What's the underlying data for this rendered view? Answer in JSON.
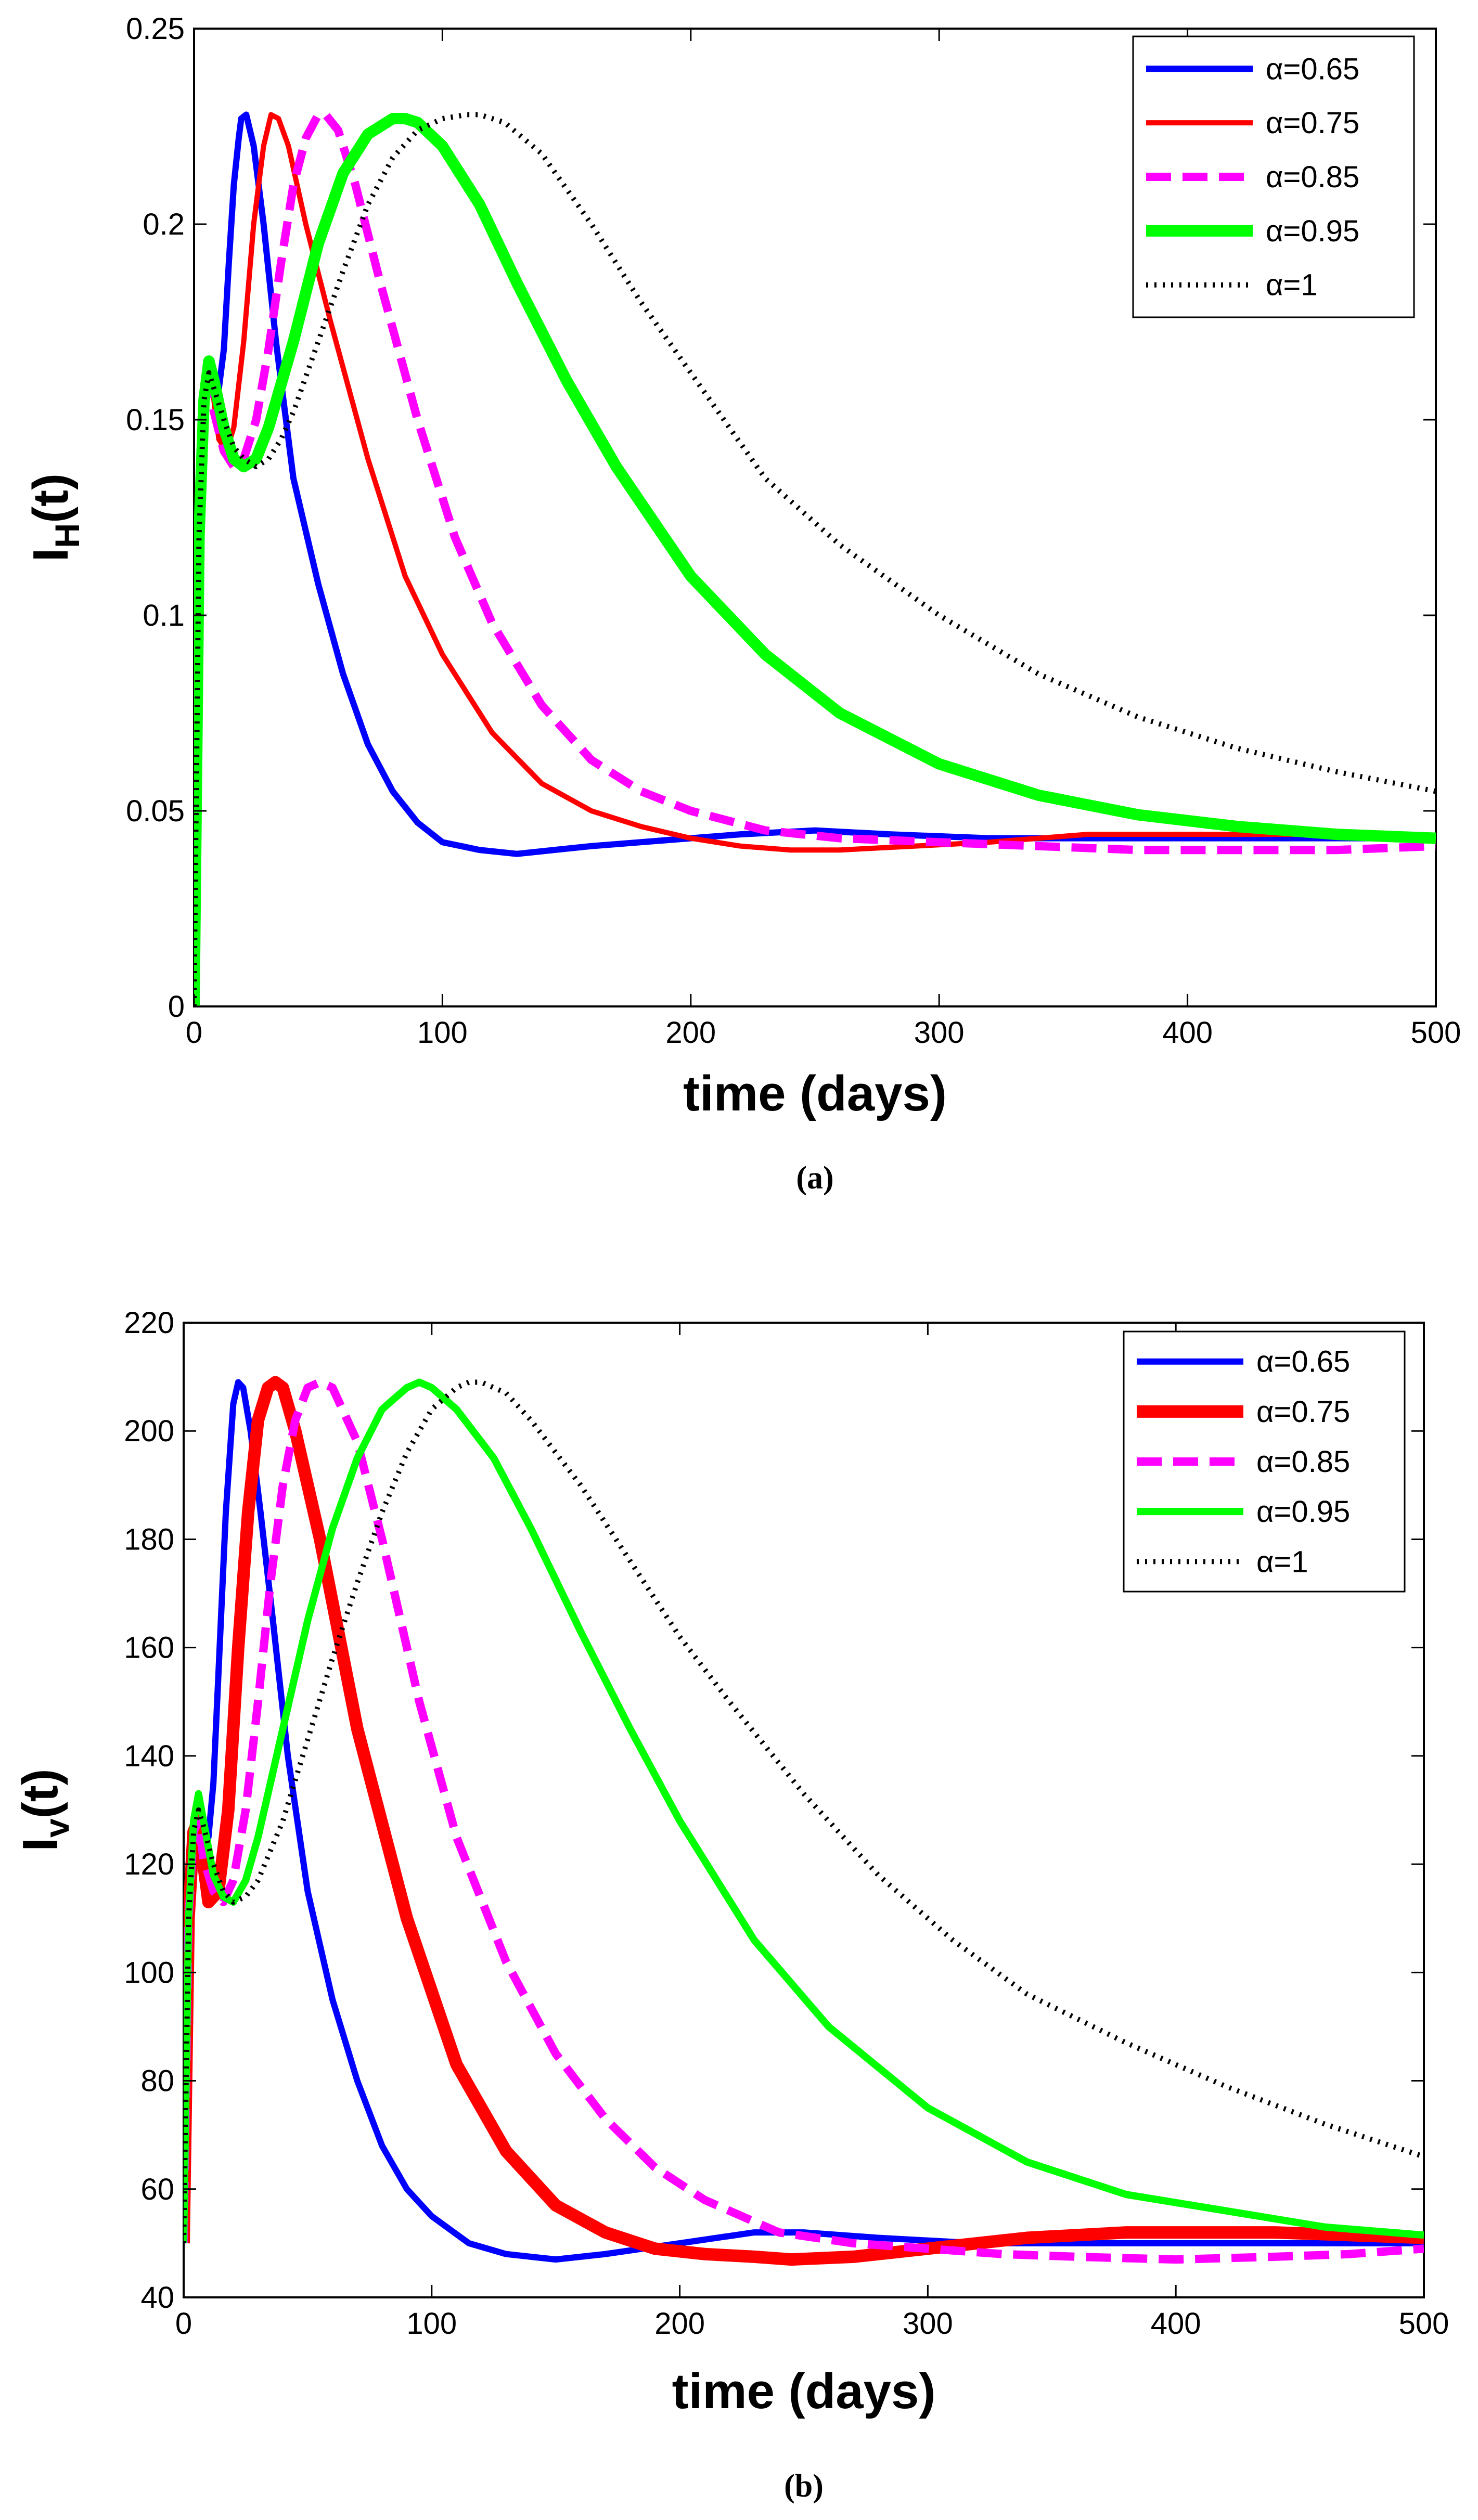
{
  "chart_data": [
    {
      "type": "line",
      "caption": "(a)",
      "xlabel": "time (days)",
      "ylabel": "I",
      "ylabel_sub": "H",
      "ylabel_suffix": "(t)",
      "xlim": [
        0,
        500
      ],
      "ylim": [
        0,
        0.25
      ],
      "xticks": [
        0,
        100,
        200,
        300,
        400,
        500
      ],
      "yticks": [
        0,
        0.05,
        0.1,
        0.15,
        0.2,
        0.25
      ],
      "ytick_labels": [
        "0",
        "0.05",
        "0.1",
        "0.15",
        "0.2",
        "0.25"
      ],
      "legend_position": "top-right",
      "series": [
        {
          "name": "α=0.65",
          "color": "#0000ff",
          "style": "solid",
          "width": 12,
          "x": [
            0,
            2,
            4,
            6,
            8,
            10,
            12,
            14,
            16,
            18,
            19,
            21,
            24,
            28,
            33,
            40,
            50,
            60,
            70,
            80,
            90,
            100,
            115,
            130,
            145,
            160,
            180,
            200,
            220,
            250,
            280,
            320,
            360,
            400,
            450,
            500
          ],
          "y": [
            0,
            0.12,
            0.155,
            0.163,
            0.16,
            0.158,
            0.168,
            0.19,
            0.21,
            0.222,
            0.227,
            0.228,
            0.22,
            0.2,
            0.17,
            0.135,
            0.108,
            0.085,
            0.067,
            0.055,
            0.047,
            0.042,
            0.04,
            0.039,
            0.04,
            0.041,
            0.042,
            0.043,
            0.044,
            0.045,
            0.044,
            0.043,
            0.043,
            0.043,
            0.043,
            0.043
          ]
        },
        {
          "name": "α=0.75",
          "color": "#ff0000",
          "style": "solid",
          "width": 10,
          "x": [
            0,
            2,
            4,
            6,
            8,
            10,
            13,
            16,
            20,
            24,
            28,
            31,
            34,
            38,
            45,
            55,
            70,
            85,
            100,
            120,
            140,
            160,
            180,
            200,
            220,
            240,
            260,
            290,
            320,
            360,
            400,
            450,
            500
          ],
          "y": [
            0,
            0.12,
            0.155,
            0.162,
            0.155,
            0.145,
            0.142,
            0.148,
            0.17,
            0.2,
            0.22,
            0.228,
            0.227,
            0.22,
            0.2,
            0.175,
            0.14,
            0.11,
            0.09,
            0.07,
            0.057,
            0.05,
            0.046,
            0.043,
            0.041,
            0.04,
            0.04,
            0.041,
            0.042,
            0.044,
            0.044,
            0.044,
            0.043
          ]
        },
        {
          "name": "α=0.85",
          "color": "#ff00ff",
          "style": "dashed",
          "width": 16,
          "x": [
            0,
            2,
            4,
            6,
            8,
            12,
            16,
            20,
            25,
            30,
            35,
            40,
            45,
            50,
            53,
            58,
            65,
            75,
            90,
            105,
            120,
            140,
            160,
            180,
            200,
            230,
            260,
            300,
            340,
            380,
            420,
            460,
            500
          ],
          "y": [
            0,
            0.12,
            0.155,
            0.16,
            0.152,
            0.142,
            0.138,
            0.14,
            0.15,
            0.168,
            0.19,
            0.21,
            0.222,
            0.228,
            0.228,
            0.224,
            0.21,
            0.185,
            0.15,
            0.12,
            0.098,
            0.077,
            0.063,
            0.055,
            0.05,
            0.045,
            0.043,
            0.042,
            0.041,
            0.04,
            0.04,
            0.04,
            0.041
          ]
        },
        {
          "name": "α=0.95",
          "color": "#00ff00",
          "style": "solid",
          "width": 22,
          "x": [
            0,
            2,
            4,
            6,
            8,
            12,
            16,
            20,
            25,
            30,
            40,
            50,
            60,
            70,
            80,
            85,
            90,
            100,
            115,
            130,
            150,
            170,
            200,
            230,
            260,
            300,
            340,
            380,
            420,
            460,
            500
          ],
          "y": [
            0,
            0.12,
            0.155,
            0.165,
            0.16,
            0.148,
            0.14,
            0.138,
            0.14,
            0.148,
            0.17,
            0.195,
            0.213,
            0.223,
            0.227,
            0.227,
            0.226,
            0.22,
            0.205,
            0.185,
            0.16,
            0.138,
            0.11,
            0.09,
            0.075,
            0.062,
            0.054,
            0.049,
            0.046,
            0.044,
            0.043
          ]
        },
        {
          "name": "α=1",
          "color": "#000000",
          "style": "dotted",
          "width": 10,
          "x": [
            0,
            2,
            4,
            6,
            8,
            12,
            16,
            20,
            25,
            30,
            35,
            40,
            50,
            60,
            70,
            80,
            90,
            100,
            110,
            115,
            125,
            140,
            160,
            180,
            200,
            230,
            260,
            300,
            340,
            380,
            420,
            460,
            500
          ],
          "y": [
            0,
            0.12,
            0.155,
            0.162,
            0.158,
            0.15,
            0.143,
            0.14,
            0.138,
            0.14,
            0.145,
            0.152,
            0.17,
            0.188,
            0.205,
            0.217,
            0.224,
            0.227,
            0.228,
            0.228,
            0.226,
            0.218,
            0.2,
            0.18,
            0.162,
            0.135,
            0.118,
            0.1,
            0.085,
            0.074,
            0.066,
            0.06,
            0.055
          ]
        }
      ]
    },
    {
      "type": "line",
      "caption": "(b)",
      "xlabel": "time (days)",
      "ylabel": "I",
      "ylabel_sub": "v",
      "ylabel_suffix": "(t)",
      "xlim": [
        0,
        500
      ],
      "ylim": [
        40,
        220
      ],
      "xticks": [
        0,
        100,
        200,
        300,
        400,
        500
      ],
      "yticks": [
        40,
        60,
        80,
        100,
        120,
        140,
        160,
        180,
        200,
        220
      ],
      "ytick_labels": [
        "40",
        "60",
        "80",
        "100",
        "120",
        "140",
        "160",
        "180",
        "200",
        "220"
      ],
      "legend_position": "top-right",
      "series": [
        {
          "name": "α=0.65",
          "color": "#0000ff",
          "style": "solid",
          "width": 12,
          "x": [
            0,
            2,
            4,
            6,
            8,
            10,
            12,
            14,
            17,
            20,
            22,
            24,
            27,
            31,
            36,
            42,
            50,
            60,
            70,
            80,
            90,
            100,
            115,
            130,
            150,
            170,
            200,
            230,
            250,
            280,
            320,
            360,
            400,
            450,
            500
          ],
          "y": [
            50,
            110,
            128,
            132,
            128,
            125,
            135,
            155,
            185,
            205,
            209,
            208,
            200,
            185,
            165,
            140,
            115,
            95,
            80,
            68,
            60,
            55,
            50,
            48,
            47,
            48,
            50,
            52,
            52,
            51,
            50,
            50,
            50,
            50,
            50
          ]
        },
        {
          "name": "α=0.75",
          "color": "#ff0000",
          "style": "solid",
          "width": 24,
          "x": [
            0,
            2,
            4,
            6,
            8,
            10,
            14,
            18,
            22,
            26,
            30,
            34,
            37,
            40,
            45,
            55,
            70,
            90,
            110,
            130,
            150,
            170,
            190,
            210,
            230,
            245,
            270,
            300,
            340,
            380,
            400,
            440,
            500
          ],
          "y": [
            50,
            110,
            126,
            128,
            120,
            113,
            115,
            130,
            160,
            185,
            202,
            208,
            209,
            208,
            200,
            180,
            145,
            110,
            83,
            67,
            57,
            52,
            49,
            48,
            47.5,
            47,
            47.5,
            49,
            51,
            52,
            52,
            52,
            51
          ]
        },
        {
          "name": "α=0.85",
          "color": "#ff00ff",
          "style": "dashed",
          "width": 16,
          "x": [
            0,
            2,
            4,
            6,
            8,
            12,
            16,
            20,
            25,
            30,
            35,
            40,
            45,
            50,
            55,
            60,
            70,
            80,
            95,
            110,
            130,
            150,
            170,
            190,
            210,
            240,
            270,
            300,
            330,
            360,
            400,
            440,
            470,
            500
          ],
          "y": [
            50,
            110,
            126,
            128,
            121,
            115,
            113,
            117,
            130,
            150,
            172,
            190,
            202,
            208,
            209,
            208,
            198,
            180,
            150,
            125,
            102,
            85,
            73,
            64,
            58,
            52,
            50,
            49,
            48,
            47.5,
            47,
            47.5,
            48,
            49
          ]
        },
        {
          "name": "α=0.95",
          "color": "#00ff00",
          "style": "solid",
          "width": 14,
          "x": [
            0,
            2,
            4,
            6,
            8,
            12,
            16,
            20,
            25,
            30,
            40,
            50,
            60,
            70,
            80,
            90,
            95,
            100,
            110,
            125,
            140,
            160,
            180,
            200,
            230,
            260,
            300,
            340,
            380,
            420,
            460,
            500
          ],
          "y": [
            50,
            110,
            128,
            133,
            128,
            118,
            114,
            113,
            117,
            125,
            145,
            165,
            182,
            195,
            204,
            208,
            209,
            208,
            204,
            195,
            182,
            163,
            145,
            128,
            106,
            90,
            75,
            65,
            59,
            56,
            53,
            51.5
          ]
        },
        {
          "name": "α=1",
          "color": "#000000",
          "style": "dotted",
          "width": 10,
          "x": [
            0,
            2,
            4,
            6,
            8,
            12,
            16,
            20,
            25,
            30,
            40,
            50,
            60,
            70,
            80,
            90,
            100,
            110,
            115,
            120,
            130,
            140,
            160,
            180,
            200,
            220,
            250,
            280,
            310,
            340,
            380,
            420,
            460,
            500
          ],
          "y": [
            50,
            110,
            126,
            130,
            127,
            120,
            115,
            113,
            114,
            117,
            128,
            143,
            158,
            172,
            185,
            196,
            204,
            208,
            209,
            209,
            207,
            202,
            190,
            176,
            162,
            150,
            133,
            118,
            106,
            96,
            87,
            79,
            72,
            66
          ]
        }
      ]
    }
  ]
}
